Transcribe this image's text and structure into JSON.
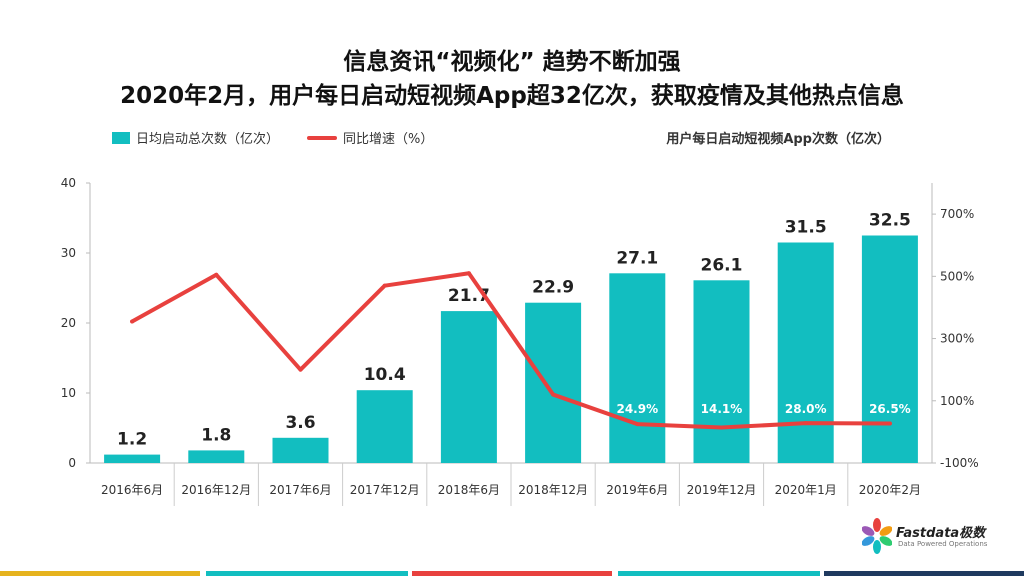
{
  "title_line1": "信息资讯“视频化” 趋势不断加强",
  "title_line2": "2020年2月，用户每日启动短视频App超32亿次，获取疫情及其他热点信息",
  "legend": {
    "bar_label": "日均启动总次数（亿次）",
    "line_label": "同比增速（%）"
  },
  "chart_subtitle": "用户每日启动短视频App次数（亿次）",
  "logo": {
    "name": "Fastdata极数",
    "tagline": "Data Powered Operations"
  },
  "colors": {
    "bar": "#12BEC0",
    "line": "#E8413E",
    "stripes": [
      "#E6B31E",
      "#12BEC0",
      "#E8413E",
      "#12BEC0",
      "#1F3A5F"
    ]
  },
  "chart_data": {
    "type": "bar",
    "categories": [
      "2016年6月",
      "2016年12月",
      "2017年6月",
      "2017年12月",
      "2018年6月",
      "2018年12月",
      "2019年6月",
      "2019年12月",
      "2020年1月",
      "2020年2月"
    ],
    "series": [
      {
        "name": "日均启动总次数（亿次）",
        "type": "bar",
        "axis": "left",
        "values": [
          1.2,
          1.8,
          3.6,
          10.4,
          21.7,
          22.9,
          27.1,
          26.1,
          31.5,
          32.5
        ],
        "labels": [
          "1.2",
          "1.8",
          "3.6",
          "10.4",
          "21.7",
          "22.9",
          "27.1",
          "26.1",
          "31.5",
          "32.5"
        ]
      },
      {
        "name": "同比增速（%）",
        "type": "line",
        "axis": "right",
        "values": [
          355,
          505,
          200,
          470,
          510,
          120,
          25,
          14,
          28,
          27
        ],
        "labels": [
          "",
          "",
          "",
          "",
          "",
          "",
          "24.9%",
          "14.1%",
          "28.0%",
          "26.5%"
        ]
      }
    ],
    "y_left": {
      "ylim": [
        0,
        40
      ],
      "ticks": [
        "0",
        "10",
        "20",
        "30",
        "40"
      ]
    },
    "y_right": {
      "ylim": [
        -100,
        800
      ],
      "ticks": [
        "-100%",
        "100%",
        "300%",
        "500%",
        "700%"
      ]
    },
    "legend_position": "top-left",
    "grid": false
  }
}
